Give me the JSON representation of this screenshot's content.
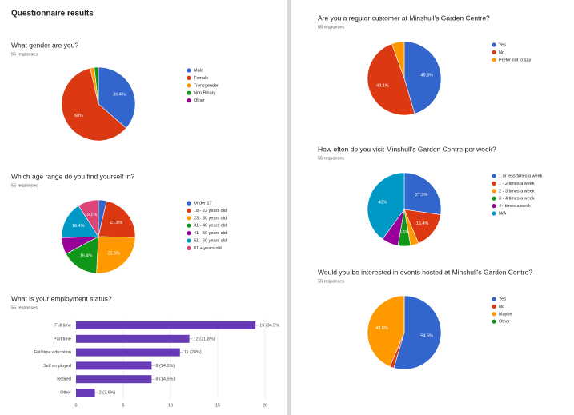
{
  "title": "Questionnaire results",
  "chart_data": [
    {
      "type": "pie",
      "title": "What gender are you?",
      "subtitle": "55 responses",
      "categories": [
        "Male",
        "Female",
        "Transgender",
        "Non Binary",
        "Other"
      ],
      "values": [
        36.4,
        60,
        1.8,
        1.8,
        0
      ],
      "value_labels": [
        "36.4%",
        "60%",
        null,
        null,
        null
      ],
      "colors": [
        "#3366cc",
        "#dc3912",
        "#ff9900",
        "#109618",
        "#990099"
      ]
    },
    {
      "type": "pie",
      "title": "Which age range do you find yourself in?",
      "subtitle": "55 responses",
      "categories": [
        "Under 17",
        "18 - 22 years old",
        "23 - 30 years old",
        "31 - 40 years old",
        "41 - 50 years old",
        "51 - 60 years old",
        "61 + years old"
      ],
      "values": [
        3.6,
        21.8,
        25.5,
        16.4,
        7.3,
        16.4,
        9.1
      ],
      "value_labels": [
        null,
        "21.8%",
        "25.5%",
        "16.4%",
        null,
        "16.4%",
        "9.1%"
      ],
      "colors": [
        "#3366cc",
        "#dc3912",
        "#ff9900",
        "#109618",
        "#990099",
        "#0099c6",
        "#dd4477"
      ]
    },
    {
      "type": "bar",
      "title": "What is your employment status?",
      "subtitle": "55 responses",
      "categories": [
        "Full time",
        "Part time",
        "Full time education",
        "Self employed",
        "Retired",
        "Other"
      ],
      "values": [
        19,
        12,
        11,
        8,
        8,
        2
      ],
      "value_labels": [
        "19 (34.5%",
        "12 (21.8%)",
        "11 (20%)",
        "8 (14.5%)",
        "8 (14.5%)",
        "2 (3.6%)"
      ],
      "color": "#673ab7",
      "xlim": [
        0,
        20
      ],
      "xticks": [
        0,
        5,
        10,
        15,
        20
      ],
      "grid": true
    },
    {
      "type": "pie",
      "title": "Are you a regular customer at Minshull's Garden Centre?",
      "subtitle": "55 responses",
      "categories": [
        "Yes",
        "No",
        "Prefer not to say"
      ],
      "values": [
        45.5,
        49.1,
        5.5
      ],
      "value_labels": [
        "45.5%",
        "49.1%",
        null
      ],
      "colors": [
        "#3366cc",
        "#dc3912",
        "#ff9900"
      ]
    },
    {
      "type": "pie",
      "title": "How often do you visit Minshull's Garden Centre per week?",
      "subtitle": "55 responses",
      "categories": [
        "1 or less times a week",
        "1 - 2 times a week",
        "2 - 3 times a week",
        "3 - 4 times a week",
        "4+ times a week",
        "N/A"
      ],
      "values": [
        27.3,
        16.4,
        3.6,
        5.5,
        7.3,
        40
      ],
      "value_labels": [
        "27.3%",
        "16.4%",
        null,
        "5.5%",
        null,
        "40%"
      ],
      "colors": [
        "#3366cc",
        "#dc3912",
        "#ff9900",
        "#109618",
        "#990099",
        "#0099c6"
      ]
    },
    {
      "type": "pie",
      "title": "Would you be interested in events hosted at Minshull's Garden Centre?",
      "subtitle": "55 responses",
      "categories": [
        "Yes",
        "No",
        "Maybe",
        "Other"
      ],
      "values": [
        54.5,
        1.8,
        43.6,
        0
      ],
      "value_labels": [
        "54.5%",
        null,
        "43.6%",
        null
      ],
      "colors": [
        "#3366cc",
        "#dc3912",
        "#ff9900",
        "#109618"
      ]
    }
  ]
}
